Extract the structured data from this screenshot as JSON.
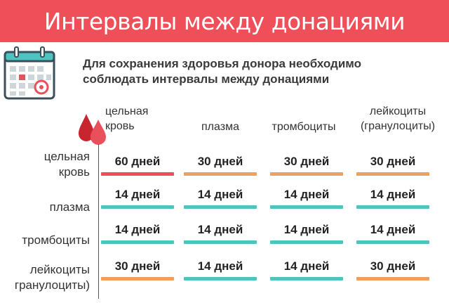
{
  "title": "Интервалы между донациями",
  "subtitle_line1": "Для сохранения здоровья донора необходимо",
  "subtitle_line2": "соблюдать интервалы между донациями",
  "icons": {
    "calendar": "calendar-icon",
    "drops": "blood-drops-icon"
  },
  "colors": {
    "red": "#e8505b",
    "orange": "#f0a05c",
    "teal": "#4ec3c0",
    "banner": "#ef4f58"
  },
  "columns": [
    {
      "line1": "цельная",
      "line2": "кровь"
    },
    {
      "line1": "плазма",
      "line2": ""
    },
    {
      "line1": "тромбоциты",
      "line2": ""
    },
    {
      "line1": "лейкоциты",
      "line2": "(гранулоциты)"
    }
  ],
  "rows": [
    {
      "line1": "цельная",
      "line2": "кровь",
      "cells": [
        {
          "value": "60 дней",
          "color": "red"
        },
        {
          "value": "30 дней",
          "color": "orange"
        },
        {
          "value": "30 дней",
          "color": "orange"
        },
        {
          "value": "30 дней",
          "color": "orange"
        }
      ]
    },
    {
      "line1": "плазма",
      "line2": "",
      "cells": [
        {
          "value": "14 дней",
          "color": "teal"
        },
        {
          "value": "14 дней",
          "color": "teal"
        },
        {
          "value": "14 дней",
          "color": "teal"
        },
        {
          "value": "14 дней",
          "color": "teal"
        }
      ]
    },
    {
      "line1": "тромбоциты",
      "line2": "",
      "cells": [
        {
          "value": "14 дней",
          "color": "teal"
        },
        {
          "value": "14 дней",
          "color": "teal"
        },
        {
          "value": "14 дней",
          "color": "teal"
        },
        {
          "value": "14 дней",
          "color": "teal"
        }
      ]
    },
    {
      "line1": "лейкоциты",
      "line2": "гранулоциты)",
      "cells": [
        {
          "value": "30 дней",
          "color": "orange"
        },
        {
          "value": "14 дней",
          "color": "teal"
        },
        {
          "value": "14 дней",
          "color": "teal"
        },
        {
          "value": "30 дней",
          "color": "orange"
        }
      ]
    }
  ]
}
